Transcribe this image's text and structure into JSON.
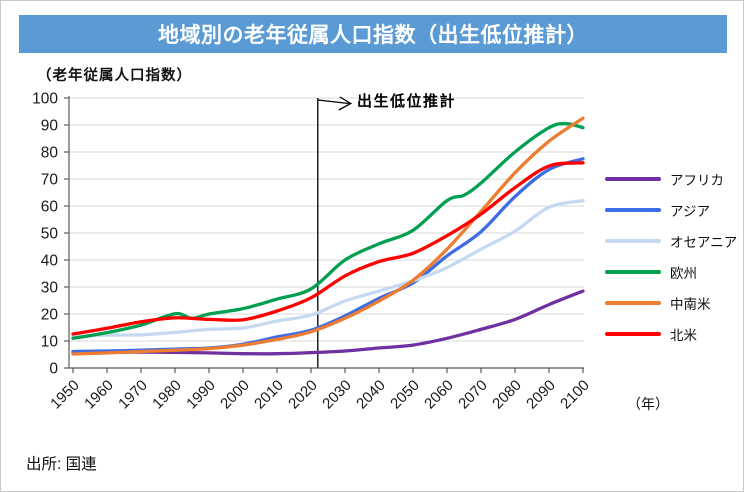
{
  "title": "地域別の老年従属人口指数（出生低位推計）",
  "y_axis_title": "（老年従属人口指数）",
  "annotation_label": "出生低位推計",
  "x_unit_label": "（年）",
  "source_note": "出所: 国連",
  "colors": {
    "banner_bg": "#5B9BD5",
    "banner_text": "#FFFFFF",
    "grid": "#D9D9D9",
    "axis": "#595959",
    "tick_text": "#1A1A1A",
    "marker_line": "#000000"
  },
  "chart_data": {
    "type": "line",
    "title": "地域別の老年従属人口指数（出生低位推計）",
    "ylabel": "（老年従属人口指数）",
    "xlabel": "（年）",
    "ylim": [
      0,
      100
    ],
    "ytick_interval": 10,
    "xlim": [
      1950,
      2100
    ],
    "xticks": [
      1950,
      1960,
      1970,
      1980,
      1990,
      2000,
      2010,
      2020,
      2030,
      2040,
      2050,
      2060,
      2070,
      2080,
      2090,
      2100
    ],
    "grid": true,
    "legend_position": "right",
    "projection_marker": {
      "year": 2022,
      "label": "出生低位推計"
    },
    "series": [
      {
        "name": "アフリカ",
        "color": "#7030A0",
        "points": [
          [
            1950,
            5.9
          ],
          [
            1960,
            5.9
          ],
          [
            1970,
            5.9
          ],
          [
            1980,
            5.8
          ],
          [
            1990,
            5.6
          ],
          [
            2000,
            5.3
          ],
          [
            2010,
            5.3
          ],
          [
            2020,
            5.7
          ],
          [
            2030,
            6.3
          ],
          [
            2040,
            7.4
          ],
          [
            2050,
            8.5
          ],
          [
            2060,
            11.0
          ],
          [
            2070,
            14.3
          ],
          [
            2080,
            18.0
          ],
          [
            2090,
            23.5
          ],
          [
            2100,
            28.5
          ]
        ]
      },
      {
        "name": "アジア",
        "color": "#3E6CE4",
        "points": [
          [
            1950,
            6.1
          ],
          [
            1960,
            6.3
          ],
          [
            1970,
            6.6
          ],
          [
            1980,
            7.0
          ],
          [
            1990,
            7.4
          ],
          [
            2000,
            8.8
          ],
          [
            2010,
            11.5
          ],
          [
            2020,
            14.0
          ],
          [
            2030,
            19.3
          ],
          [
            2040,
            25.8
          ],
          [
            2050,
            31.5
          ],
          [
            2060,
            41.5
          ],
          [
            2070,
            50.5
          ],
          [
            2080,
            63.5
          ],
          [
            2090,
            73.5
          ],
          [
            2100,
            77.5
          ]
        ]
      },
      {
        "name": "オセアニア",
        "color": "#C5D9F1",
        "points": [
          [
            1950,
            11.8
          ],
          [
            1960,
            12.2
          ],
          [
            1970,
            12.3
          ],
          [
            1980,
            13.2
          ],
          [
            1990,
            14.3
          ],
          [
            2000,
            14.8
          ],
          [
            2010,
            17.4
          ],
          [
            2020,
            19.6
          ],
          [
            2030,
            24.8
          ],
          [
            2040,
            28.5
          ],
          [
            2050,
            32.3
          ],
          [
            2060,
            37.2
          ],
          [
            2070,
            44.0
          ],
          [
            2080,
            50.7
          ],
          [
            2090,
            59.5
          ],
          [
            2100,
            62.0
          ]
        ]
      },
      {
        "name": "欧州",
        "color": "#00A050",
        "points": [
          [
            1950,
            11.0
          ],
          [
            1960,
            13.1
          ],
          [
            1970,
            15.9
          ],
          [
            1980,
            20.1
          ],
          [
            1985,
            18.4
          ],
          [
            1990,
            20.0
          ],
          [
            2000,
            22.0
          ],
          [
            2010,
            25.5
          ],
          [
            2020,
            29.3
          ],
          [
            2030,
            40.0
          ],
          [
            2040,
            46.0
          ],
          [
            2050,
            51.0
          ],
          [
            2060,
            62.0
          ],
          [
            2065,
            64.0
          ],
          [
            2070,
            68.5
          ],
          [
            2080,
            80.0
          ],
          [
            2090,
            89.0
          ],
          [
            2095,
            90.5
          ],
          [
            2100,
            89.0
          ]
        ]
      },
      {
        "name": "中南米",
        "color": "#ED7D31",
        "points": [
          [
            1950,
            5.2
          ],
          [
            1960,
            5.6
          ],
          [
            1970,
            6.1
          ],
          [
            1980,
            6.6
          ],
          [
            1990,
            7.2
          ],
          [
            2000,
            8.5
          ],
          [
            2010,
            10.6
          ],
          [
            2020,
            13.4
          ],
          [
            2030,
            18.4
          ],
          [
            2040,
            24.8
          ],
          [
            2050,
            32.5
          ],
          [
            2060,
            44.0
          ],
          [
            2070,
            58.0
          ],
          [
            2080,
            72.3
          ],
          [
            2090,
            84.0
          ],
          [
            2100,
            92.5
          ]
        ]
      },
      {
        "name": "北米",
        "color": "#FF0000",
        "points": [
          [
            1950,
            12.6
          ],
          [
            1960,
            14.7
          ],
          [
            1970,
            17.1
          ],
          [
            1980,
            18.6
          ],
          [
            1990,
            18.0
          ],
          [
            2000,
            17.9
          ],
          [
            2010,
            21.1
          ],
          [
            2020,
            26.0
          ],
          [
            2030,
            34.1
          ],
          [
            2040,
            39.4
          ],
          [
            2050,
            42.5
          ],
          [
            2060,
            49.0
          ],
          [
            2070,
            57.0
          ],
          [
            2080,
            66.8
          ],
          [
            2090,
            74.8
          ],
          [
            2100,
            76.0
          ]
        ]
      }
    ]
  }
}
